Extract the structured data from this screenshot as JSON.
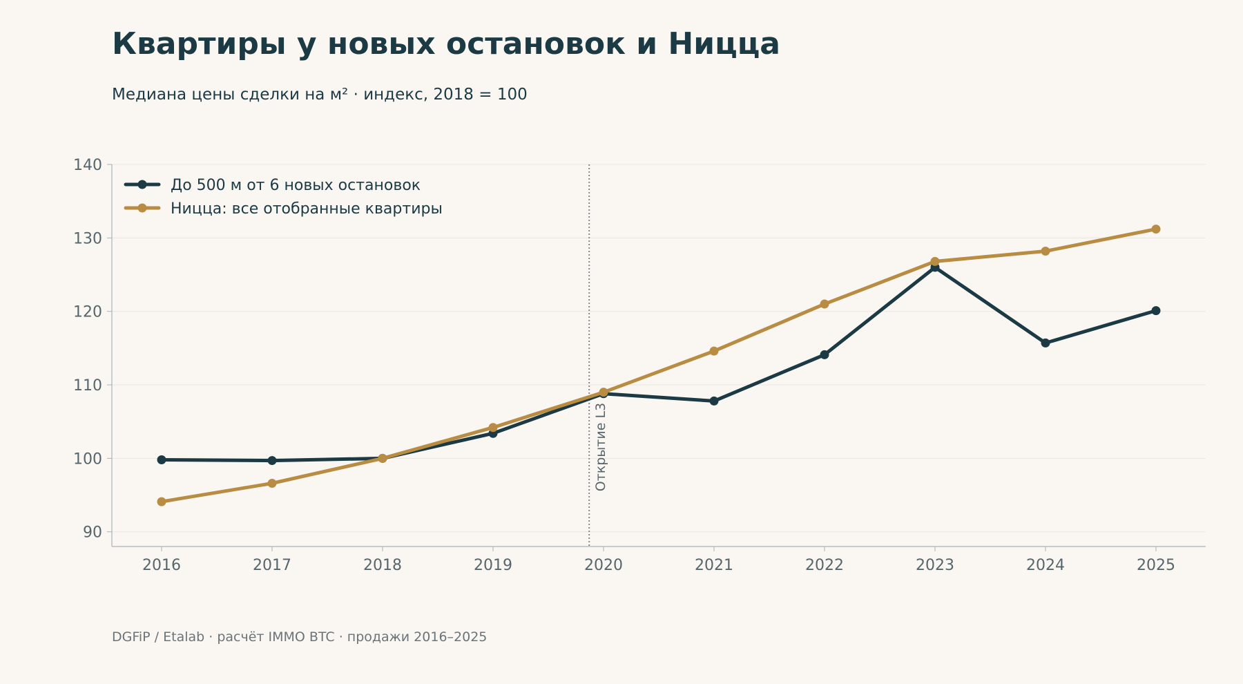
{
  "title": "Квартиры у новых остановок и Ницца",
  "subtitle": "Медиана цены сделки на м² · индекс, 2018 = 100",
  "source": "DGFiP / Etalab · расчёт IMMO BTC · продажи 2016–2025",
  "colors": {
    "background": "#faf7f3",
    "near_stops": "#1b3a44",
    "nice": "#b88c43",
    "grid": "#e9e6e1",
    "axis": "#aab2b6",
    "tick_text": "#56666b",
    "marker_line": "#7f8a8e"
  },
  "chart_data": {
    "type": "line",
    "x": [
      2016,
      2017,
      2018,
      2019,
      2020,
      2021,
      2022,
      2023,
      2024,
      2025
    ],
    "xlim": [
      2015.55,
      2025.45
    ],
    "ylim": [
      88,
      140
    ],
    "yticks": [
      90,
      100,
      110,
      120,
      130,
      140
    ],
    "grid": true,
    "legend_position": "top-left",
    "series": [
      {
        "name": "До 500 м от 6 новых остановок",
        "color": "#1b3a44",
        "values": [
          99.8,
          99.7,
          100.0,
          103.4,
          108.8,
          107.8,
          114.1,
          126.0,
          115.7,
          120.1
        ]
      },
      {
        "name": "Ницца: все отобранные квартиры",
        "color": "#b88c43",
        "values": [
          94.1,
          96.6,
          100.0,
          104.2,
          109.0,
          114.6,
          121.0,
          126.8,
          128.2,
          131.2
        ]
      }
    ],
    "annotations": [
      {
        "x": 2019.87,
        "label": "Открытие L3",
        "style": "dotted-vertical"
      }
    ]
  }
}
